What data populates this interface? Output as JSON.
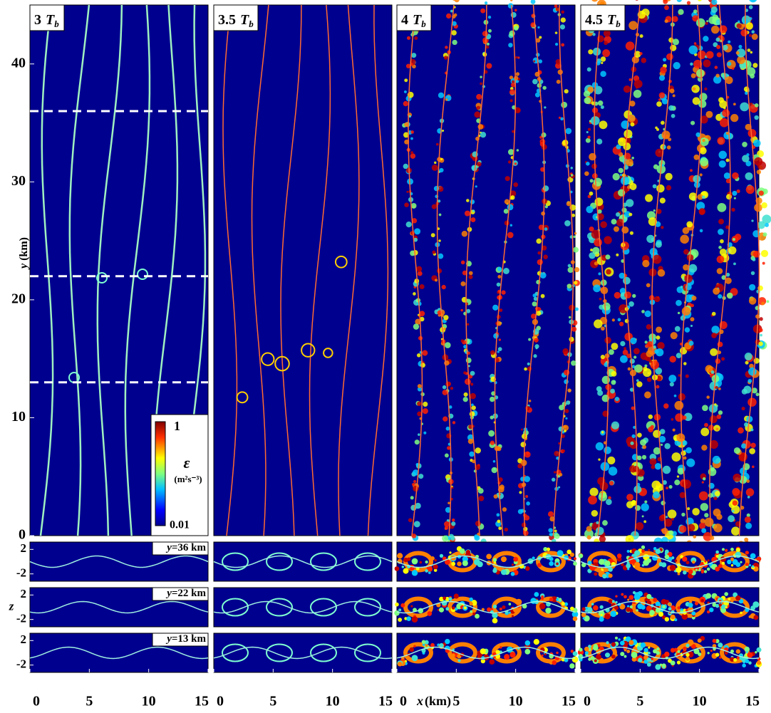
{
  "chart_data": [
    {
      "type": "heatmap",
      "title": {
        "number": "3",
        "symbol": "T",
        "subscript": "b"
      },
      "xlim": [
        0,
        15
      ],
      "xticks": [
        0,
        5,
        10,
        15
      ],
      "ylim": [
        0,
        45
      ],
      "yticks": [
        0,
        10,
        20,
        30,
        40
      ],
      "y_label": {
        "var": "y",
        "unit": "(km)"
      },
      "lines": [
        36,
        22,
        13
      ],
      "colorbar": {
        "min": 0.01,
        "max": 1,
        "label": "ε",
        "units": "(m²s⁻³)"
      },
      "zlim": [
        -3.2,
        3.2
      ],
      "zticks": [
        2,
        -2
      ],
      "z_label": "z",
      "slices": [
        {
          "var": "y",
          "text": "=36 km"
        },
        {
          "var": "y",
          "text": "=22 km"
        },
        {
          "var": "y",
          "text": "=13 km"
        }
      ]
    },
    {
      "type": "heatmap",
      "title": {
        "number": "3.5",
        "symbol": "T",
        "subscript": "b"
      },
      "xlim": [
        0,
        15
      ],
      "xticks": [
        0,
        5,
        10,
        15
      ]
    },
    {
      "type": "heatmap",
      "title": {
        "number": "4",
        "symbol": "T",
        "subscript": "b"
      },
      "xlim": [
        0,
        15
      ],
      "xticks": [
        0,
        5,
        10,
        15
      ],
      "x_label": {
        "var": "x",
        "unit": "(km)"
      }
    },
    {
      "type": "heatmap",
      "title": {
        "number": "4.5",
        "symbol": "T",
        "subscript": "b"
      },
      "xlim": [
        0,
        15
      ],
      "xticks": [
        0,
        5,
        10,
        15
      ]
    }
  ]
}
